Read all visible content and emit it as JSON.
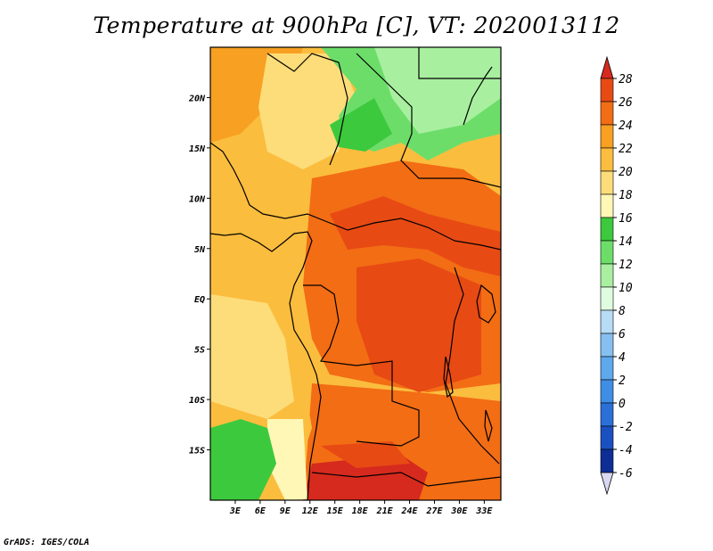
{
  "title": "Temperature at 900hPa [C], VT: 2020013112",
  "credit": "GrADS: IGES/COLA",
  "map": {
    "lon_range": [
      0,
      35
    ],
    "lat_range": [
      -20,
      25
    ],
    "lon_ticks": [
      "3E",
      "6E",
      "9E",
      "12E",
      "15E",
      "18E",
      "21E",
      "24E",
      "27E",
      "30E",
      "33E"
    ],
    "lat_ticks": [
      "20N",
      "15N",
      "10N",
      "5N",
      "EQ",
      "5S",
      "10S",
      "15S"
    ]
  },
  "colorbar": {
    "labels": [
      "28",
      "26",
      "24",
      "22",
      "20",
      "18",
      "16",
      "14",
      "12",
      "10",
      "8",
      "6",
      "4",
      "2",
      "0",
      "-2",
      "-4",
      "-6"
    ],
    "colors": {
      "above_28": "#d62a1e",
      "26_28": "#e84a14",
      "24_26": "#f26d14",
      "22_24": "#f7a022",
      "20_22": "#fbbd3e",
      "18_20": "#fddd7a",
      "16_18": "#fff7b6",
      "14_16": "#3dc93d",
      "12_14": "#6ddd6a",
      "10_12": "#a8f0a0",
      "8_10": "#e0fce0",
      "6_8": "#b8dcf6",
      "4_6": "#86c0f0",
      "2_4": "#5ea8ec",
      "0_2": "#3e8ee6",
      "m2_0": "#2a70d8",
      "m4_m2": "#1a50c0",
      "m6_m4": "#0e2e96",
      "below_m6": "#0a0e60"
    }
  }
}
